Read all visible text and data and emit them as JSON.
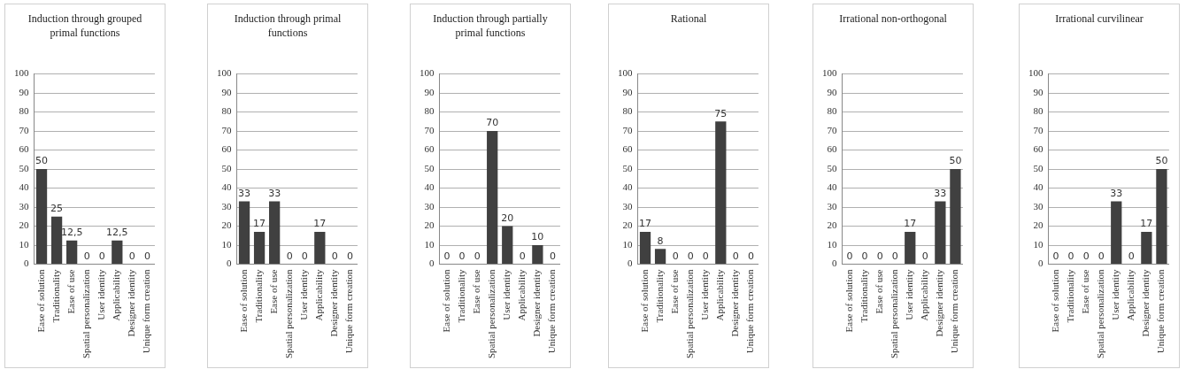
{
  "chart_data": [
    {
      "type": "bar",
      "title": "Induction  through grouped primal functions",
      "categories": [
        "Ease of solution",
        "Traditionality",
        "Ease of use",
        "Spatial personalization",
        "User identity",
        "Applicability",
        "Designer identity",
        "Unique form creation"
      ],
      "values": [
        50,
        25,
        12.5,
        0,
        0,
        12.5,
        0,
        0
      ],
      "value_labels": [
        "50",
        "25",
        "12,5",
        "0",
        "0",
        "12,5",
        "0",
        "0"
      ],
      "color": "#404040",
      "ylim": [
        0,
        100
      ],
      "yticks": [
        0,
        10,
        20,
        30,
        40,
        50,
        60,
        70,
        80,
        90,
        100
      ],
      "grid": "y"
    },
    {
      "type": "bar",
      "title": "Induction  through primal functions",
      "categories": [
        "Ease of solution",
        "Traditionality",
        "Ease of use",
        "Spatial personalization",
        "User identity",
        "Applicability",
        "Designer identity",
        "Unique form creation"
      ],
      "values": [
        33,
        17,
        33,
        0,
        0,
        17,
        0,
        0
      ],
      "data_labels": true,
      "color": "#404040",
      "ylim": [
        0,
        100
      ],
      "yticks": [
        0,
        10,
        20,
        30,
        40,
        50,
        60,
        70,
        80,
        90,
        100
      ],
      "grid": "y"
    },
    {
      "type": "bar",
      "title": "Induction through partially primal functions",
      "categories": [
        "Ease of solution",
        "Traditionality",
        "Ease of use",
        "Spatial personalization",
        "User identity",
        "Applicability",
        "Designer identity",
        "Unique form creation"
      ],
      "values": [
        0,
        0,
        0,
        70,
        20,
        0,
        10,
        0
      ],
      "data_labels": true,
      "color": "#404040",
      "ylim": [
        0,
        100
      ],
      "yticks": [
        0,
        10,
        20,
        30,
        40,
        50,
        60,
        70,
        80,
        90,
        100
      ],
      "grid": "y"
    },
    {
      "type": "bar",
      "title": "Rational",
      "categories": [
        "Ease of solution",
        "Traditionality",
        "Ease of use",
        "Spatial personalization",
        "User identity",
        "Applicability",
        "Designer identity",
        "Unique form creation"
      ],
      "values": [
        17,
        8,
        0,
        0,
        0,
        75,
        0,
        0
      ],
      "data_labels": true,
      "color": "#404040",
      "ylim": [
        0,
        100
      ],
      "yticks": [
        0,
        10,
        20,
        30,
        40,
        50,
        60,
        70,
        80,
        90,
        100
      ],
      "grid": "y"
    },
    {
      "type": "bar",
      "title": "Irrational non-orthogonal",
      "categories": [
        "Ease of solution",
        "Traditionality",
        "Ease of use",
        "Spatial personalization",
        "User identity",
        "Applicability",
        "Designer identity",
        "Unique form creation"
      ],
      "values": [
        0,
        0,
        0,
        0,
        17,
        0,
        33,
        50
      ],
      "data_labels": true,
      "color": "#404040",
      "ylim": [
        0,
        100
      ],
      "yticks": [
        0,
        10,
        20,
        30,
        40,
        50,
        60,
        70,
        80,
        90,
        100
      ],
      "grid": "y"
    },
    {
      "type": "bar",
      "title": "Irrational curvilinear",
      "categories": [
        "Ease of solution",
        "Traditionality",
        "Ease of use",
        "Spatial personalization",
        "User identity",
        "Applicability",
        "Designer identity",
        "Unique form creation"
      ],
      "values": [
        0,
        0,
        0,
        0,
        33,
        0,
        17,
        50
      ],
      "data_labels": true,
      "color": "#404040",
      "ylim": [
        0,
        100
      ],
      "yticks": [
        0,
        10,
        20,
        30,
        40,
        50,
        60,
        70,
        80,
        90,
        100
      ],
      "grid": "y"
    }
  ]
}
